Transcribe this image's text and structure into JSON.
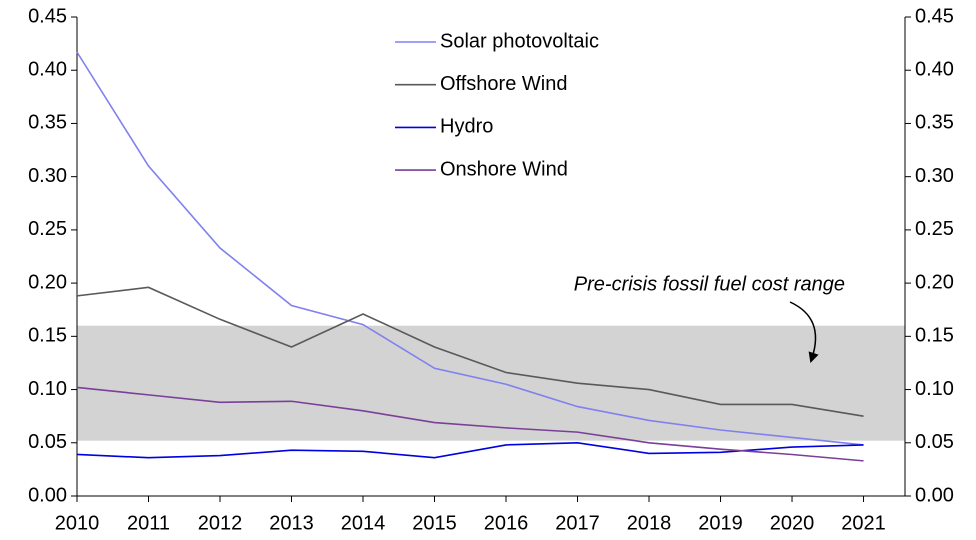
{
  "chart_data": {
    "type": "line",
    "annotation": "Pre-crisis fossil fuel cost range",
    "band": {
      "range": [
        0.052,
        0.16
      ],
      "color": "#d3d3d3"
    },
    "x": [
      2010,
      2011,
      2012,
      2013,
      2014,
      2015,
      2016,
      2017,
      2018,
      2019,
      2020,
      2021
    ],
    "xlim": [
      2010,
      2021.58
    ],
    "xticks": [
      2010,
      2011,
      2012,
      2013,
      2014,
      2015,
      2016,
      2017,
      2018,
      2019,
      2020,
      2021
    ],
    "ylim": [
      0,
      0.45
    ],
    "yticks": [
      {
        "value": 0,
        "label": "0.00"
      },
      {
        "value": 0.05,
        "label": "0.05"
      },
      {
        "value": 0.1,
        "label": "0.10"
      },
      {
        "value": 0.15,
        "label": "0.15"
      },
      {
        "value": 0.2,
        "label": "0.20"
      },
      {
        "value": 0.25,
        "label": "0.25"
      },
      {
        "value": 0.3,
        "label": "0.30"
      },
      {
        "value": 0.35,
        "label": "0.35"
      },
      {
        "value": 0.4,
        "label": "0.40"
      },
      {
        "value": 0.45,
        "label": "0.45"
      }
    ],
    "y2lim": [
      0,
      0.45
    ],
    "y2ticks": [
      {
        "value": 0,
        "label": "0.00"
      },
      {
        "value": 0.05,
        "label": "0.05"
      },
      {
        "value": 0.1,
        "label": "0.10"
      },
      {
        "value": 0.15,
        "label": "0.15"
      },
      {
        "value": 0.2,
        "label": "0.20"
      },
      {
        "value": 0.25,
        "label": "0.25"
      },
      {
        "value": 0.3,
        "label": "0.30"
      },
      {
        "value": 0.35,
        "label": "0.35"
      },
      {
        "value": 0.4,
        "label": "0.40"
      },
      {
        "value": 0.45,
        "label": "0.45"
      }
    ],
    "grid": false,
    "series": [
      {
        "name": "Solar photovoltaic",
        "color": "#8080f0",
        "values": [
          0.417,
          0.31,
          0.233,
          0.179,
          0.161,
          0.12,
          0.105,
          0.084,
          0.071,
          0.062,
          0.055,
          0.048
        ]
      },
      {
        "name": "Offshore Wind",
        "color": "#595959",
        "values": [
          0.188,
          0.196,
          0.166,
          0.14,
          0.171,
          0.14,
          0.116,
          0.106,
          0.1,
          0.086,
          0.086,
          0.075
        ]
      },
      {
        "name": "Hydro",
        "color": "#0000e0",
        "values": [
          0.039,
          0.036,
          0.038,
          0.043,
          0.042,
          0.036,
          0.048,
          0.05,
          0.04,
          0.041,
          0.046,
          0.048
        ]
      },
      {
        "name": "Onshore Wind",
        "color": "#7a3f98",
        "values": [
          0.102,
          0.095,
          0.088,
          0.089,
          0.08,
          0.069,
          0.064,
          0.06,
          0.05,
          0.044,
          0.039,
          0.033
        ]
      }
    ]
  }
}
